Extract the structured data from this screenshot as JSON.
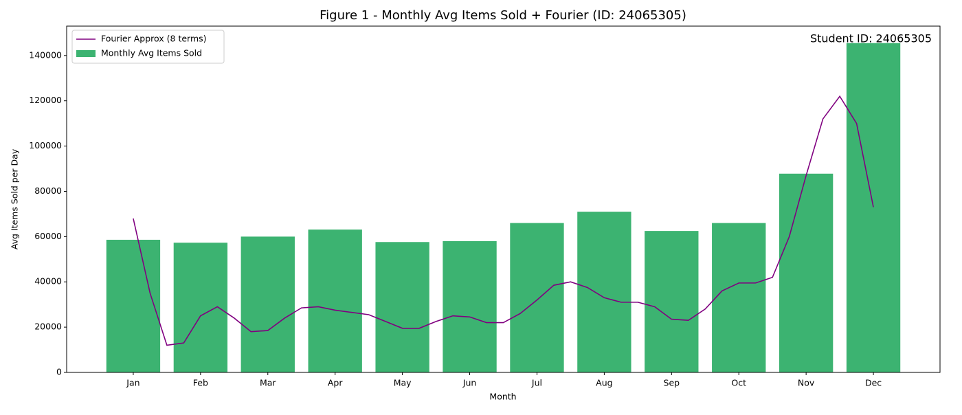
{
  "chart_data": {
    "type": "bar",
    "title": "Figure 1 - Monthly Avg Items Sold + Fourier (ID: 24065305)",
    "annotation": "Student ID: 24065305",
    "x_label": "Month",
    "y_label": "Avg Items Sold per Day",
    "categories": [
      "Jan",
      "Feb",
      "Mar",
      "Apr",
      "May",
      "Jun",
      "Jul",
      "Aug",
      "Sep",
      "Oct",
      "Nov",
      "Dec"
    ],
    "xlim": [
      -0.99,
      11.99
    ],
    "ylim": [
      0,
      153000
    ],
    "yticks": [
      0,
      20000,
      40000,
      60000,
      80000,
      100000,
      120000,
      140000
    ],
    "grid": false,
    "legend": "upper left",
    "series": [
      {
        "name": "Fourier Approx (8 terms)",
        "type": "line",
        "color": "#800080",
        "x": [
          0,
          0.25,
          0.5,
          0.75,
          1,
          1.25,
          1.5,
          1.75,
          2,
          2.25,
          2.5,
          2.75,
          3,
          3.25,
          3.5,
          3.75,
          4,
          4.25,
          4.5,
          4.75,
          5,
          5.25,
          5.5,
          5.75,
          6,
          6.25,
          6.5,
          6.75,
          7,
          7.25,
          7.5,
          7.75,
          8,
          8.25,
          8.5,
          8.75,
          9,
          9.25,
          9.5,
          9.75,
          10,
          10.25,
          10.5,
          10.75,
          11
        ],
        "values": [
          68000,
          35000,
          12000,
          13000,
          25000,
          29000,
          24000,
          18000,
          18500,
          24000,
          28500,
          29000,
          27500,
          26500,
          25500,
          22500,
          19500,
          19500,
          22500,
          25000,
          24500,
          22000,
          22000,
          26000,
          32000,
          38500,
          40000,
          37500,
          33000,
          31000,
          31000,
          29000,
          23500,
          23000,
          28000,
          36000,
          39500,
          39500,
          42000,
          60000,
          87000,
          112000,
          122000,
          110000,
          73000
        ]
      },
      {
        "name": "Monthly Avg Items Sold",
        "type": "bar",
        "color": "#3cb371",
        "values": [
          58600,
          57300,
          60000,
          63100,
          57600,
          58000,
          66000,
          71000,
          62500,
          66000,
          87800,
          145500
        ]
      }
    ]
  }
}
